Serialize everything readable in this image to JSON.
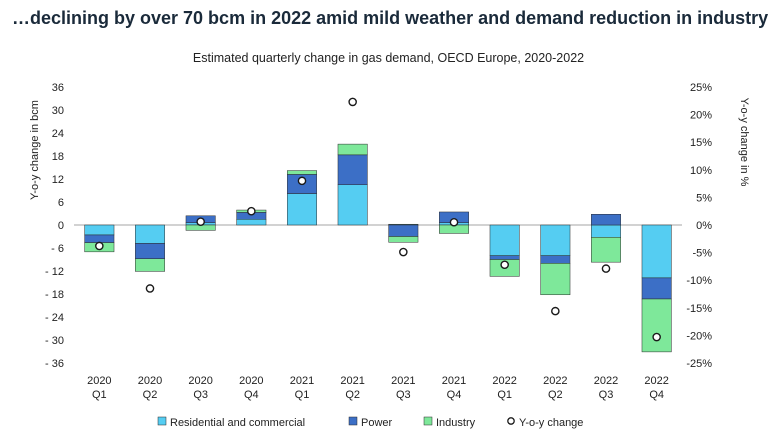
{
  "headline": "…declining by over 70 bcm in 2022 amid mild weather and demand reduction in industry",
  "chart_data": {
    "type": "bar",
    "stacked": true,
    "title": "Estimated quarterly change in gas demand, OECD Europe, 2020-2022",
    "ylabel_left": "Y-o-y change in bcm",
    "ylabel_right": "Y-o-y change in %",
    "ylim_left": [
      -36,
      36
    ],
    "yticks_left": [
      36,
      30,
      24,
      18,
      12,
      6,
      0,
      -6,
      -12,
      -18,
      -24,
      -30,
      -36
    ],
    "ytick_labels_left": [
      "36",
      "30",
      "24",
      "18",
      "12",
      "6",
      "0",
      "- 6",
      "- 12",
      "- 18",
      "- 24",
      "- 30",
      "- 36"
    ],
    "ylim_right": [
      -25,
      25
    ],
    "yticks_right": [
      25,
      20,
      15,
      10,
      5,
      0,
      -5,
      -10,
      -15,
      -20,
      -25
    ],
    "ytick_labels_right": [
      "25%",
      "20%",
      "15%",
      "10%",
      "5%",
      "0%",
      "-5%",
      "-10%",
      "-15%",
      "-20%",
      "-25%"
    ],
    "categories": [
      [
        "2020",
        "Q1"
      ],
      [
        "2020",
        "Q2"
      ],
      [
        "2020",
        "Q3"
      ],
      [
        "2020",
        "Q4"
      ],
      [
        "2021",
        "Q1"
      ],
      [
        "2021",
        "Q2"
      ],
      [
        "2021",
        "Q3"
      ],
      [
        "2021",
        "Q4"
      ],
      [
        "2022",
        "Q1"
      ],
      [
        "2022",
        "Q2"
      ],
      [
        "2022",
        "Q3"
      ],
      [
        "2022",
        "Q4"
      ]
    ],
    "series": [
      {
        "name": "Residential and commercial",
        "color": "#55cdf2",
        "values": [
          -2.6,
          -4.8,
          0.6,
          1.5,
          8.2,
          10.5,
          0.2,
          0.6,
          -8.0,
          -8.0,
          -3.2,
          -13.8
        ]
      },
      {
        "name": "Power",
        "color": "#3c6fc6",
        "values": [
          -2.0,
          -4.0,
          1.8,
          1.8,
          5.0,
          7.8,
          -3.0,
          2.8,
          -1.0,
          -2.0,
          2.8,
          -5.5
        ]
      },
      {
        "name": "Industry",
        "color": "#7ee89a",
        "values": [
          -2.4,
          -3.3,
          -1.4,
          0.6,
          1.0,
          2.8,
          -1.5,
          -2.2,
          -4.4,
          -8.2,
          -6.5,
          -13.8
        ]
      }
    ],
    "yoy_series": {
      "name": "Y-o-y change",
      "axis": "right",
      "values": [
        -3.8,
        -11.5,
        0.6,
        2.5,
        8.0,
        22.3,
        -4.9,
        0.5,
        -7.2,
        -15.6,
        -7.9,
        -20.3
      ]
    },
    "legend_position": "bottom",
    "grid": false
  }
}
